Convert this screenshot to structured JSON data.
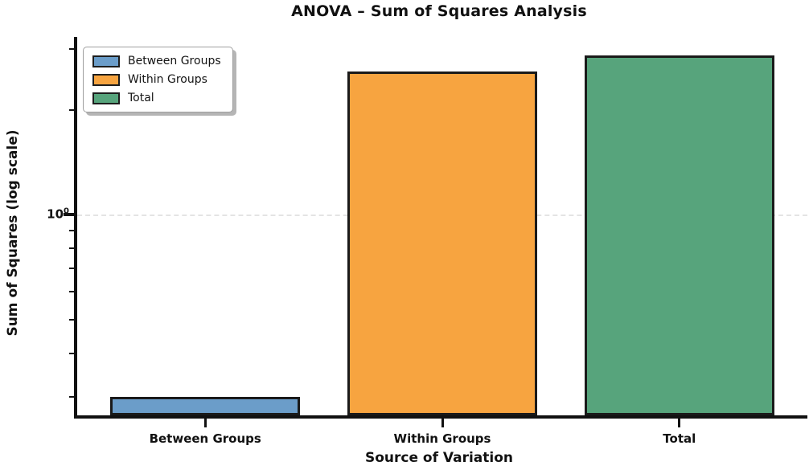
{
  "chart": {
    "title": "ANOVA – Sum of Squares Analysis",
    "xlabel": "Source of Variation",
    "ylabel": "Sum of Squares (log scale)",
    "ytick": {
      "base": "10",
      "exp": "0"
    },
    "legend": {
      "items": [
        {
          "label": "Between Groups",
          "color": "#6B9DC9"
        },
        {
          "label": "Within Groups",
          "color": "#F7A440"
        },
        {
          "label": "Total",
          "color": "#57A47C"
        }
      ]
    }
  },
  "chart_data": {
    "type": "bar",
    "title": "ANOVA – Sum of Squares Analysis",
    "xlabel": "Source of Variation",
    "ylabel": "Sum of Squares (log scale)",
    "categories": [
      "Between Groups",
      "Within Groups",
      "Total"
    ],
    "values": [
      0.3,
      2.58,
      2.88
    ],
    "yscale": "log",
    "ylim": [
      0.265,
      3.25
    ],
    "xlim": [
      -0.54,
      2.54
    ],
    "ytick_labels": [
      "10⁰"
    ],
    "y_minor_ticks": [
      0.3,
      0.4,
      0.5,
      0.6,
      0.7,
      0.8,
      0.9,
      2,
      3
    ],
    "bar_width_fraction": 0.8,
    "bar_colors": [
      "#6B9DC9",
      "#F7A440",
      "#57A47C"
    ],
    "bar_edge_color": "#1a1a1a",
    "grid": {
      "axis": "y",
      "at": [
        1.0
      ],
      "style": "dashed",
      "color": "#e4e4e4"
    },
    "legend_position": "upper left",
    "legend_labels": [
      "Between Groups",
      "Within Groups",
      "Total"
    ]
  }
}
